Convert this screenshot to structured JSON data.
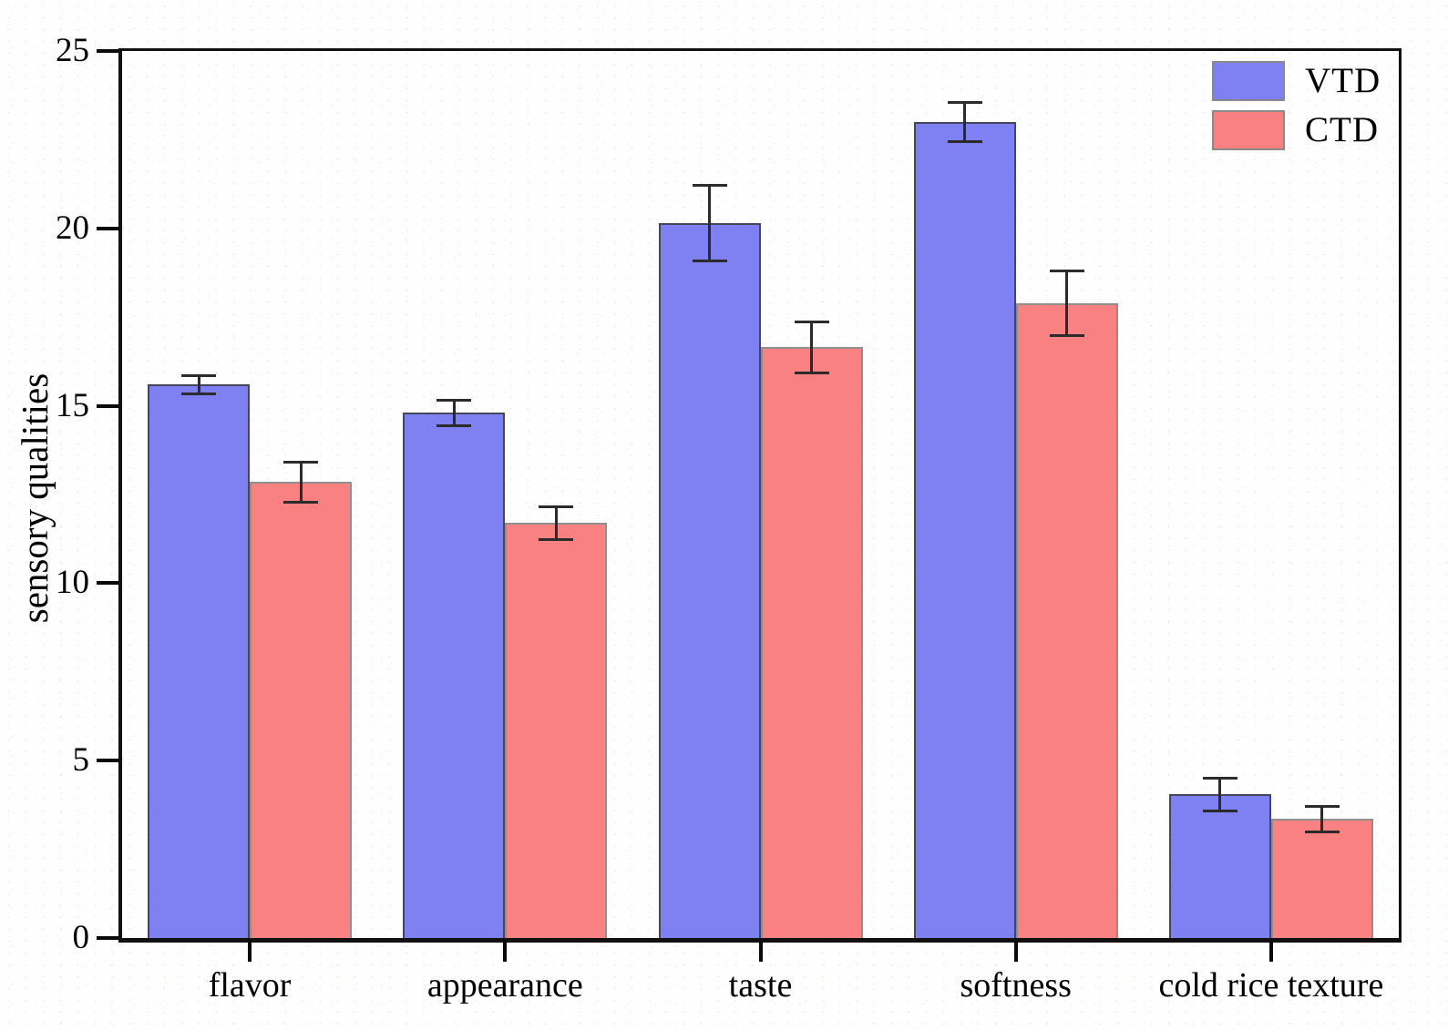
{
  "chart_data": {
    "type": "bar",
    "title": "",
    "xlabel": "",
    "ylabel": "sensory qualities",
    "ylim": [
      0,
      25
    ],
    "yticks": [
      0,
      5,
      10,
      15,
      20,
      25
    ],
    "grid": false,
    "legend_position": "top-right",
    "error_bars": true,
    "categories": [
      "flavor",
      "appearance",
      "taste",
      "softness",
      "cold rice texture"
    ],
    "series": [
      {
        "name": "VTD",
        "color": "#7f80f2",
        "border_color": "#45455c",
        "values": [
          15.6,
          14.8,
          20.15,
          23.0,
          4.05
        ],
        "errors": [
          0.3,
          0.4,
          1.1,
          0.6,
          0.5
        ]
      },
      {
        "name": "CTD",
        "color": "#f98181",
        "border_color": "#8f8f8f",
        "values": [
          12.85,
          11.7,
          16.65,
          17.9,
          3.35
        ],
        "errors": [
          0.6,
          0.5,
          0.75,
          0.95,
          0.4
        ]
      }
    ]
  }
}
